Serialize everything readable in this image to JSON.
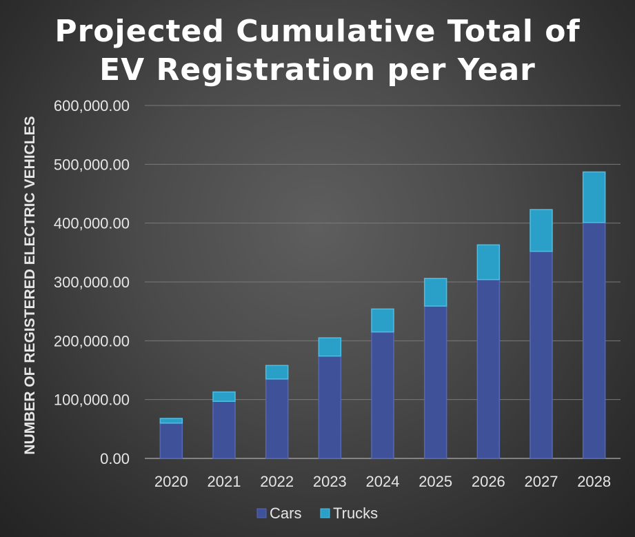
{
  "chart_data": {
    "type": "bar",
    "stacked": true,
    "title_lines": [
      "Projected Cumulative Total of",
      "EV Registration per Year"
    ],
    "ylabel": "NUMBER OF REGISTERED ELECTRIC VEHICLES",
    "xlabel": "",
    "categories": [
      "2020",
      "2021",
      "2022",
      "2023",
      "2024",
      "2025",
      "2026",
      "2027",
      "2028"
    ],
    "series": [
      {
        "name": "Cars",
        "values": [
          60000,
          97000,
          135000,
          174000,
          215000,
          259000,
          304000,
          352000,
          401000
        ],
        "color": "#3f5199"
      },
      {
        "name": "Trucks",
        "values": [
          8000,
          16000,
          23000,
          31000,
          39000,
          47000,
          59000,
          71000,
          86000
        ],
        "color": "#2aa0c9"
      }
    ],
    "ylim": [
      0,
      600000
    ],
    "yticks": [
      "0.00",
      "100,000.00",
      "200,000.00",
      "300,000.00",
      "400,000.00",
      "500,000.00",
      "600,000.00"
    ],
    "grid": true,
    "legend_position": "bottom"
  }
}
